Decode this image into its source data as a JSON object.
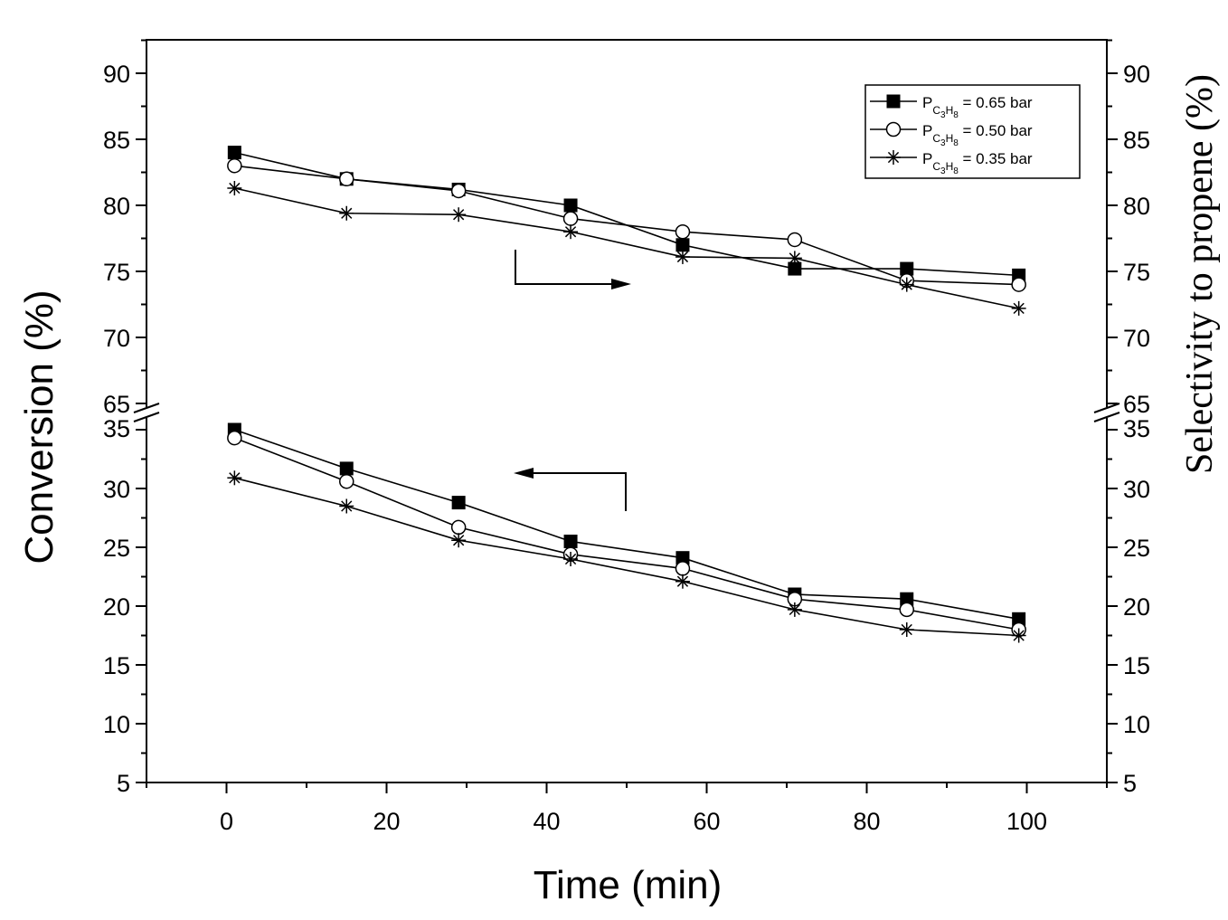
{
  "chart_data": {
    "type": "line",
    "xlabel": "Time (min)",
    "ylabel_left": "Conversion (%)",
    "ylabel_right": "Selectivity to propene (%)",
    "xlim": [
      -10,
      110
    ],
    "x_ticks": [
      0,
      20,
      40,
      60,
      80,
      100
    ],
    "ylim_lower": [
      5,
      36
    ],
    "ylim_upper": [
      65,
      92
    ],
    "y_ticks_lower": [
      5,
      10,
      15,
      20,
      25,
      30,
      35
    ],
    "y_ticks_upper": [
      65,
      70,
      75,
      80,
      85,
      90
    ],
    "axis_break": "between 35 and 65",
    "grid": false,
    "legend_position": "top-right",
    "x": [
      1,
      15,
      29,
      43,
      57,
      71,
      85,
      99
    ],
    "series": [
      {
        "name": "P_C3H8 = 0.65 bar",
        "legend_main": "P",
        "legend_sub1": "C",
        "legend_sub2": "3",
        "legend_sub3": "H",
        "legend_sub4": "8",
        "legend_value": " = 0.65 bar",
        "marker": "filled-square",
        "selectivity": [
          84.0,
          82.0,
          81.2,
          80.0,
          77.0,
          75.2,
          75.2,
          74.7
        ],
        "conversion": [
          35.0,
          31.7,
          28.8,
          25.5,
          24.1,
          21.0,
          20.6,
          18.9
        ]
      },
      {
        "name": "P_C3H8 = 0.50 bar",
        "legend_main": "P",
        "legend_sub1": "C",
        "legend_sub2": "3",
        "legend_sub3": "H",
        "legend_sub4": "8",
        "legend_value": " = 0.50 bar",
        "marker": "open-circle",
        "selectivity": [
          83.0,
          82.0,
          81.1,
          79.0,
          78.0,
          77.4,
          74.3,
          74.0
        ],
        "conversion": [
          34.3,
          30.6,
          26.7,
          24.4,
          23.2,
          20.6,
          19.7,
          18.0
        ]
      },
      {
        "name": "P_C3H8 = 0.35 bar",
        "legend_main": "P",
        "legend_sub1": "C",
        "legend_sub2": "3",
        "legend_sub3": "H",
        "legend_sub4": "8",
        "legend_value": " = 0.35 bar",
        "marker": "asterisk",
        "selectivity": [
          81.3,
          79.4,
          79.3,
          78.0,
          76.1,
          76.0,
          74.0,
          72.2
        ],
        "conversion": [
          30.9,
          28.5,
          25.6,
          24.0,
          22.1,
          19.7,
          18.0,
          17.5
        ]
      }
    ],
    "annotations": [
      "arrow pointing right (selectivity curves use right axis)",
      "arrow pointing left (conversion curves use left axis)"
    ]
  }
}
